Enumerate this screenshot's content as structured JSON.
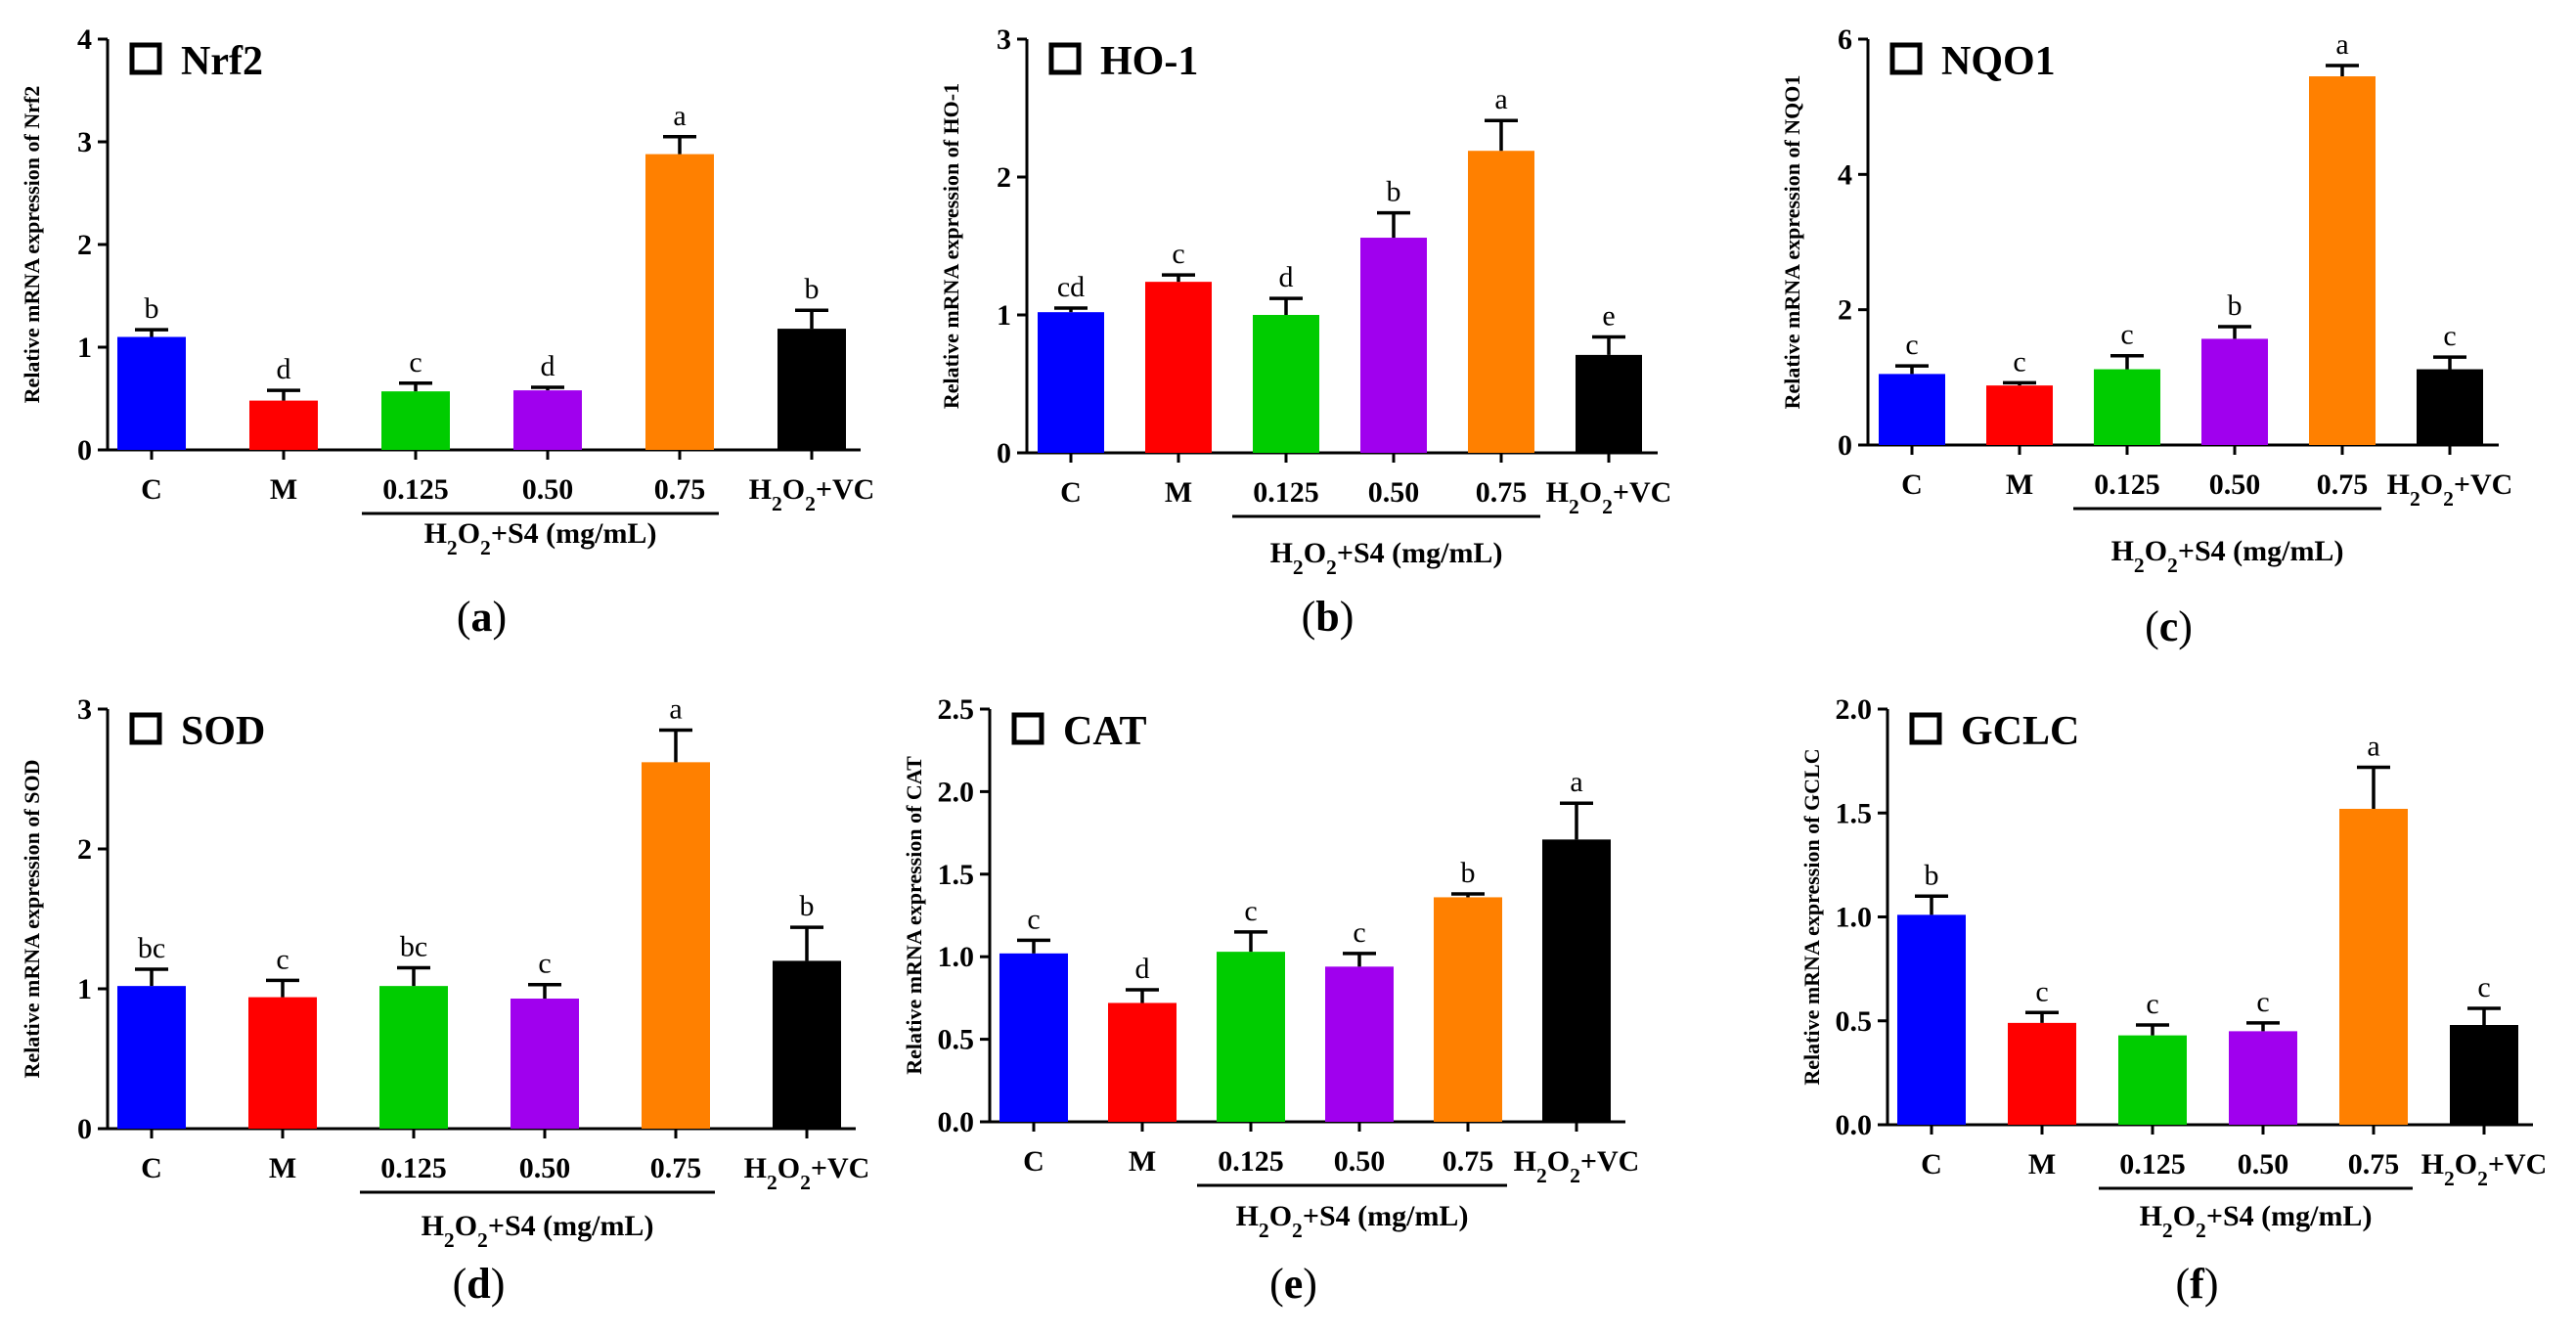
{
  "colors": [
    "#0000ff",
    "#ff0000",
    "#00cc00",
    "#a000ee",
    "#ff8000",
    "#000000"
  ],
  "chart_data": [
    {
      "type": "bar",
      "panel": "(a)",
      "gene": "Nrf2",
      "ylabel": "Relative mRNA expression of Nrf2",
      "categories": [
        "C",
        "M",
        "0.125",
        "0.50",
        "0.75",
        "H2O2+VC"
      ],
      "group_label": "H2O2+S4 (mg/mL)",
      "values": [
        1.1,
        0.48,
        0.57,
        0.58,
        2.88,
        1.18
      ],
      "errors": [
        0.07,
        0.1,
        0.08,
        0.03,
        0.17,
        0.18
      ],
      "sig": [
        "b",
        "d",
        "c",
        "d",
        "a",
        "b"
      ],
      "ylim": [
        0,
        4
      ],
      "yticks": [
        0,
        1,
        2,
        3,
        4
      ],
      "ytick_labels": [
        "0",
        "1",
        "2",
        "3",
        "4"
      ]
    },
    {
      "type": "bar",
      "panel": "(b)",
      "gene": "HO-1",
      "ylabel": "Relative mRNA expression of HO-1",
      "categories": [
        "C",
        "M",
        "0.125",
        "0.50",
        "0.75",
        "H2O2+VC"
      ],
      "group_label": "H2O2+S4 (mg/mL)",
      "values": [
        1.02,
        1.24,
        1.0,
        1.56,
        2.19,
        0.71
      ],
      "errors": [
        0.03,
        0.05,
        0.12,
        0.18,
        0.22,
        0.13
      ],
      "sig": [
        "cd",
        "c",
        "d",
        "b",
        "a",
        "e"
      ],
      "ylim": [
        0,
        3
      ],
      "yticks": [
        0,
        1,
        2,
        3
      ],
      "ytick_labels": [
        "0",
        "1",
        "2",
        "3"
      ]
    },
    {
      "type": "bar",
      "panel": "(c)",
      "gene": "NQO1",
      "ylabel": "Relative mRNA expression of NQO1",
      "categories": [
        "C",
        "M",
        "0.125",
        "0.50",
        "0.75",
        "H2O2+VC"
      ],
      "group_label": "H2O2+S4 (mg/mL)",
      "values": [
        1.05,
        0.88,
        1.12,
        1.57,
        5.45,
        1.12
      ],
      "errors": [
        0.12,
        0.04,
        0.2,
        0.18,
        0.16,
        0.18
      ],
      "sig": [
        "c",
        "c",
        "c",
        "b",
        "a",
        "c"
      ],
      "ylim": [
        0,
        6
      ],
      "yticks": [
        0,
        2,
        4,
        6
      ],
      "ytick_labels": [
        "0",
        "2",
        "4",
        "6"
      ]
    },
    {
      "type": "bar",
      "panel": "(d)",
      "gene": "SOD",
      "ylabel": "Relative mRNA expression of SOD",
      "categories": [
        "C",
        "M",
        "0.125",
        "0.50",
        "0.75",
        "H2O2+VC"
      ],
      "group_label": "H2O2+S4 (mg/mL)",
      "values": [
        1.02,
        0.94,
        1.02,
        0.93,
        2.62,
        1.2
      ],
      "errors": [
        0.12,
        0.12,
        0.13,
        0.1,
        0.23,
        0.24
      ],
      "sig": [
        "bc",
        "c",
        "bc",
        "c",
        "a",
        "b"
      ],
      "ylim": [
        0,
        3
      ],
      "yticks": [
        0,
        1,
        2,
        3
      ],
      "ytick_labels": [
        "0",
        "1",
        "2",
        "3"
      ]
    },
    {
      "type": "bar",
      "panel": "(e)",
      "gene": "CAT",
      "ylabel": "Relative mRNA expression of CAT",
      "categories": [
        "C",
        "M",
        "0.125",
        "0.50",
        "0.75",
        "H2O2+VC"
      ],
      "group_label": "H2O2+S4 (mg/mL)",
      "values": [
        1.02,
        0.72,
        1.03,
        0.94,
        1.36,
        1.71
      ],
      "errors": [
        0.08,
        0.08,
        0.12,
        0.08,
        0.02,
        0.22
      ],
      "sig": [
        "c",
        "d",
        "c",
        "c",
        "b",
        "a"
      ],
      "ylim": [
        0,
        2.5
      ],
      "yticks": [
        0,
        0.5,
        1,
        1.5,
        2,
        2.5
      ],
      "ytick_labels": [
        "0.0",
        "0.5",
        "1.0",
        "1.5",
        "2.0",
        "2.5"
      ]
    },
    {
      "type": "bar",
      "panel": "(f)",
      "gene": "GCLC",
      "ylabel": "Relative mRNA expression of GCLC",
      "categories": [
        "C",
        "M",
        "0.125",
        "0.50",
        "0.75",
        "H2O2+VC"
      ],
      "group_label": "H2O2+S4 (mg/mL)",
      "values": [
        1.01,
        0.49,
        0.43,
        0.45,
        1.52,
        0.48
      ],
      "errors": [
        0.09,
        0.05,
        0.05,
        0.04,
        0.2,
        0.08
      ],
      "sig": [
        "b",
        "c",
        "c",
        "c",
        "a",
        "c"
      ],
      "ylim": [
        0,
        2
      ],
      "yticks": [
        0,
        0.5,
        1,
        1.5,
        2
      ],
      "ytick_labels": [
        "0.0",
        "0.5",
        "1.0",
        "1.5",
        "2.0"
      ]
    }
  ]
}
